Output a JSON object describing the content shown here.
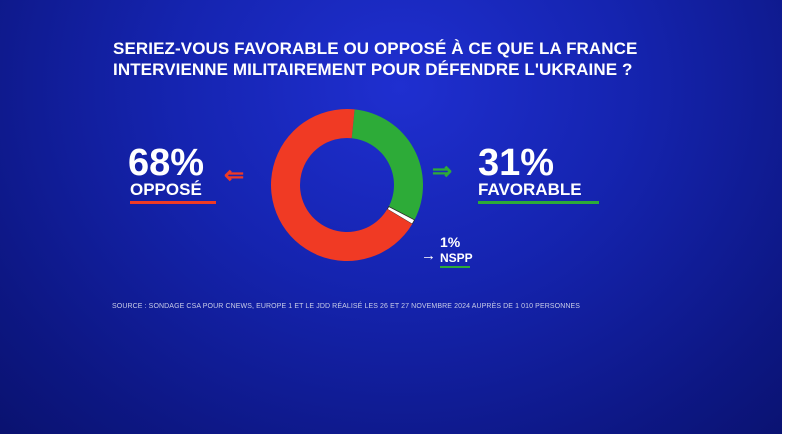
{
  "chart_data": {
    "type": "pie",
    "title_lines": [
      "SERIEZ-VOUS FAVORABLE OU OPPOSÉ À CE QUE LA FRANCE",
      "INTERVIENNE MILITAIREMENT POUR DÉFENDRE L'UKRAINE ?"
    ],
    "slices": [
      {
        "label": "OPPOSÉ",
        "value": 68,
        "display": "68%",
        "color": "#f03a24"
      },
      {
        "label": "FAVORABLE",
        "value": 31,
        "display": "31%",
        "color": "#2dab38"
      },
      {
        "label": "NSPP",
        "value": 1,
        "display": "1%",
        "color": "#ffffff"
      }
    ],
    "source": "SOURCE : SONDAGE CSA POUR CNEWS, EUROPE 1 ET LE JDD RÉALISÉ LES 26 ET 27 NOVEMBRE 2024 AUPRÈS DE 1 010 PERSONNES"
  },
  "arrows": {
    "left": "⇐",
    "right": "⇒",
    "small": "→"
  },
  "colors": {
    "opposed": "#f03a24",
    "favorable": "#2dab38",
    "nspp": "#ffffff"
  }
}
